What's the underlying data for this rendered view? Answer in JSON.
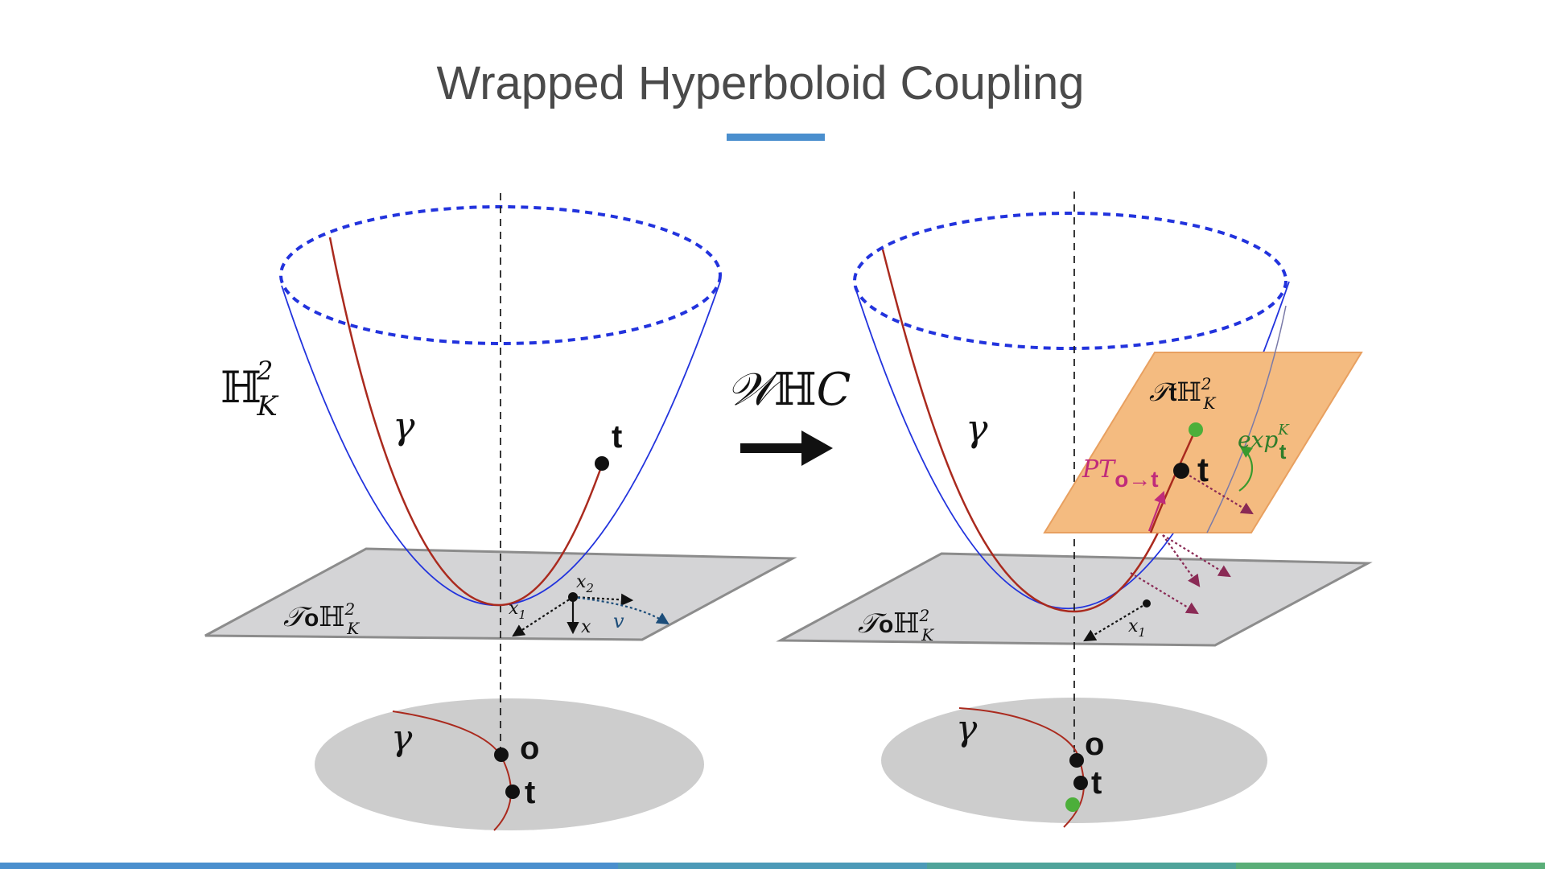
{
  "title": "Wrapped Hyperboloid Coupling",
  "colors": {
    "title": "#4a4a4a",
    "accent_underline": "#4a8fce",
    "hyperboloid": "#2233dd",
    "geodesic": "#aa2a1e",
    "tangent_plane_origin": "#d4d4d6",
    "tangent_plane_t": "#f4bb80",
    "disk": "#cdcdcd",
    "green_point": "#4caf3a",
    "parallel_transport": "#c02b7a",
    "exp_map": "#2f7d2a",
    "dotted_arrows": "#8a2a55",
    "bottom_bar": [
      "#4a8fce",
      "#4a8fce",
      "#4c9ab8",
      "#4fa39a",
      "#5aae78"
    ]
  },
  "left": {
    "space_label": {
      "base": "ℍ",
      "sup": "2",
      "sub": "K"
    },
    "gamma": "γ",
    "t": "t",
    "o": "o",
    "tangent_plane_label": {
      "script": "𝒯",
      "point": "o",
      "base": "ℍ",
      "sup": "2",
      "sub": "K"
    },
    "x1": {
      "base": "x",
      "sub": "1"
    },
    "x2": {
      "base": "x",
      "sub": "2"
    },
    "x": "x",
    "v": "v"
  },
  "arrow_label": {
    "w": "𝒲",
    "h": "ℍ",
    "c": "C"
  },
  "right": {
    "gamma": "γ",
    "t": "t",
    "o": "o",
    "tangent_plane_t_label": {
      "script": "𝒯",
      "point": "t",
      "base": "ℍ",
      "sup": "2",
      "sub": "K"
    },
    "tangent_plane_o_label": {
      "script": "𝒯",
      "point": "o",
      "base": "ℍ",
      "sup": "2",
      "sub": "K"
    },
    "pt_label": {
      "base": "PT",
      "sub": "o→t"
    },
    "exp_label": {
      "base": "exp",
      "sup": "K",
      "sub": "t"
    },
    "x1": {
      "base": "x",
      "sub": "1"
    }
  }
}
